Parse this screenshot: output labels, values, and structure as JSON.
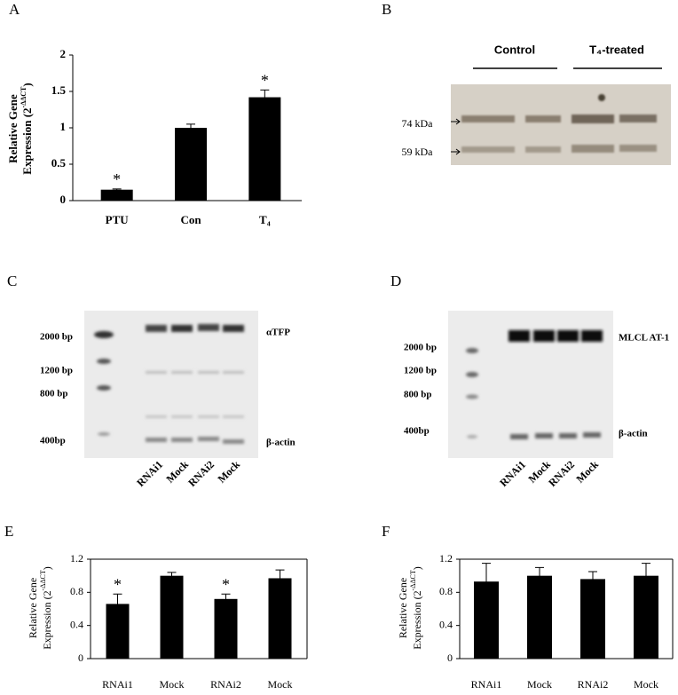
{
  "chart_data": [
    {
      "type": "bar",
      "panel": "A",
      "categories": [
        "PTU",
        "Con",
        "T₄"
      ],
      "values": [
        0.15,
        1.0,
        1.42
      ],
      "errors": [
        0.01,
        0.05,
        0.1
      ],
      "significance": [
        "*",
        null,
        "*"
      ],
      "color": "#000000",
      "ylabel": [
        "Relative Gene",
        "Expression (2",
        "-ΔΔCT",
        ")"
      ],
      "ylim": [
        0,
        2
      ],
      "yticks": [
        0,
        0.5,
        1,
        1.5,
        2
      ]
    },
    {
      "type": "bar",
      "panel": "E",
      "categories": [
        "RNAi1",
        "Mock",
        "RNAi2",
        "Mock"
      ],
      "values": [
        0.66,
        1.0,
        0.72,
        0.97
      ],
      "errors": [
        0.12,
        0.04,
        0.06,
        0.1
      ],
      "significance": [
        "*",
        null,
        "*",
        null
      ],
      "color": "#000000",
      "ylabel": [
        "Relative Gene",
        "Expression (2",
        "-ΔΔCT",
        ")"
      ],
      "ylim": [
        0,
        1.2
      ],
      "yticks": [
        0,
        0.4,
        0.8,
        1.2
      ]
    },
    {
      "type": "bar",
      "panel": "F",
      "categories": [
        "RNAi1",
        "Mock",
        "RNAi2",
        "Mock"
      ],
      "values": [
        0.93,
        1.0,
        0.96,
        1.0
      ],
      "errors": [
        0.22,
        0.1,
        0.09,
        0.15
      ],
      "significance": [
        null,
        null,
        null,
        null
      ],
      "color": "#000000",
      "ylabel": [
        "Relative Gene",
        "Expression (2",
        "-ΔΔCT",
        ")"
      ],
      "ylim": [
        0,
        1.2
      ],
      "yticks": [
        0,
        0.4,
        0.8,
        1.2
      ]
    }
  ],
  "gels": {
    "B": {
      "panel": "B",
      "groups": [
        "Control",
        "T₄-treated"
      ],
      "markers": [
        "74 kDa",
        "59 kDa"
      ]
    },
    "C": {
      "panel": "C",
      "ladder": [
        "2000 bp",
        "1200 bp",
        "800 bp",
        "400bp"
      ],
      "bands": [
        "αTFP",
        "β-actin"
      ],
      "lanes": [
        "RNAi1",
        "Mock",
        "RNAi2",
        "Mock"
      ]
    },
    "D": {
      "panel": "D",
      "ladder": [
        "2000 bp",
        "1200 bp",
        "800 bp",
        "400bp"
      ],
      "bands": [
        "MLCL AT-1",
        "β-actin"
      ],
      "lanes": [
        "RNAi1",
        "Mock",
        "RNAi2",
        "Mock"
      ]
    }
  }
}
